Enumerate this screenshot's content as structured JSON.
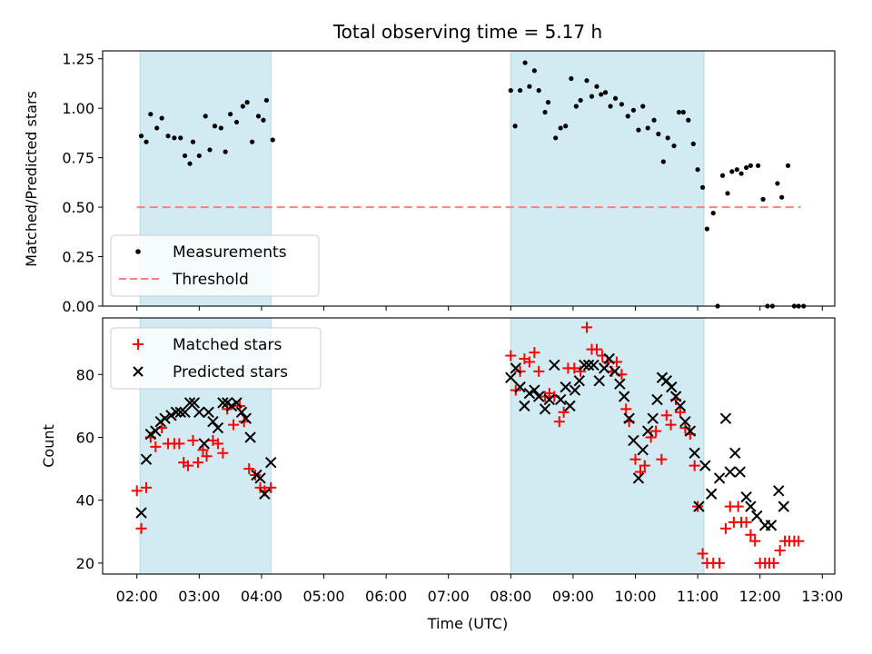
{
  "title": "Total observing time = 5.17 h",
  "colors": {
    "shade": "#add8e6",
    "matched": "#ff0000",
    "predicted": "#000000",
    "threshold": "#ff7f7f",
    "measurements": "#000000"
  },
  "chart_data": [
    {
      "type": "scatter",
      "name": "ratio-panel",
      "title": "Total observing time = 5.17 h",
      "ylabel": "Matched/Predicted stars",
      "xlim": [
        1.45,
        13.2
      ],
      "ylim": [
        0,
        1.29
      ],
      "yticks": [
        0.0,
        0.25,
        0.5,
        0.75,
        1.0,
        1.25
      ],
      "ytick_labels": [
        "0.00",
        "0.25",
        "0.50",
        "0.75",
        "1.00",
        "1.25"
      ],
      "shaded_intervals": [
        [
          2.05,
          4.15
        ],
        [
          8.0,
          11.1
        ]
      ],
      "legend": {
        "placement": "lower-left",
        "entries": [
          "Measurements",
          "Threshold"
        ]
      },
      "series": [
        {
          "name": "Measurements",
          "marker": "dot",
          "points": [
            [
              2.07,
              0.86
            ],
            [
              2.15,
              0.83
            ],
            [
              2.22,
              0.97
            ],
            [
              2.32,
              0.9
            ],
            [
              2.4,
              0.95
            ],
            [
              2.5,
              0.86
            ],
            [
              2.6,
              0.85
            ],
            [
              2.7,
              0.85
            ],
            [
              2.77,
              0.76
            ],
            [
              2.85,
              0.72
            ],
            [
              2.9,
              0.83
            ],
            [
              3.0,
              0.76
            ],
            [
              3.1,
              0.96
            ],
            [
              3.17,
              0.79
            ],
            [
              3.25,
              0.91
            ],
            [
              3.35,
              0.9
            ],
            [
              3.42,
              0.78
            ],
            [
              3.5,
              0.97
            ],
            [
              3.6,
              0.93
            ],
            [
              3.7,
              1.01
            ],
            [
              3.77,
              1.03
            ],
            [
              3.85,
              0.83
            ],
            [
              3.95,
              0.96
            ],
            [
              4.03,
              0.94
            ],
            [
              4.08,
              1.04
            ],
            [
              4.18,
              0.84
            ],
            [
              8.0,
              1.09
            ],
            [
              8.07,
              0.91
            ],
            [
              8.15,
              1.09
            ],
            [
              8.23,
              1.23
            ],
            [
              8.3,
              1.11
            ],
            [
              8.38,
              1.19
            ],
            [
              8.45,
              1.09
            ],
            [
              8.55,
              0.98
            ],
            [
              8.6,
              1.03
            ],
            [
              8.72,
              0.85
            ],
            [
              8.8,
              0.9
            ],
            [
              8.88,
              0.91
            ],
            [
              8.97,
              1.15
            ],
            [
              9.05,
              1.01
            ],
            [
              9.12,
              1.04
            ],
            [
              9.22,
              1.14
            ],
            [
              9.3,
              1.06
            ],
            [
              9.38,
              1.11
            ],
            [
              9.45,
              1.07
            ],
            [
              9.52,
              1.08
            ],
            [
              9.6,
              1.01
            ],
            [
              9.68,
              1.05
            ],
            [
              9.78,
              1.02
            ],
            [
              9.88,
              0.96
            ],
            [
              9.97,
              0.99
            ],
            [
              10.05,
              0.89
            ],
            [
              10.12,
              1.01
            ],
            [
              10.2,
              0.9
            ],
            [
              10.3,
              0.94
            ],
            [
              10.37,
              0.87
            ],
            [
              10.45,
              0.73
            ],
            [
              10.52,
              0.85
            ],
            [
              10.62,
              0.81
            ],
            [
              10.7,
              0.98
            ],
            [
              10.77,
              0.98
            ],
            [
              10.85,
              0.94
            ],
            [
              10.93,
              0.82
            ],
            [
              11.0,
              0.69
            ],
            [
              11.08,
              0.6
            ],
            [
              11.15,
              0.39
            ],
            [
              11.25,
              0.47
            ],
            [
              11.32,
              0.0
            ],
            [
              11.4,
              0.66
            ],
            [
              11.48,
              0.57
            ],
            [
              11.55,
              0.68
            ],
            [
              11.63,
              0.69
            ],
            [
              11.7,
              0.67
            ],
            [
              11.78,
              0.7
            ],
            [
              11.85,
              0.71
            ],
            [
              11.97,
              0.71
            ],
            [
              12.05,
              0.54
            ],
            [
              12.12,
              0.0
            ],
            [
              12.2,
              0.0
            ],
            [
              12.28,
              0.62
            ],
            [
              12.35,
              0.55
            ],
            [
              12.45,
              0.71
            ],
            [
              12.55,
              0.0
            ],
            [
              12.62,
              0.0
            ],
            [
              12.7,
              0.0
            ]
          ]
        },
        {
          "name": "Threshold",
          "style": "dashed",
          "x": [
            2.0,
            12.65
          ],
          "y": [
            0.5,
            0.5
          ]
        }
      ]
    },
    {
      "type": "scatter",
      "name": "count-panel",
      "xlabel": "Time (UTC)",
      "ylabel": "Count",
      "xlim": [
        1.45,
        13.2
      ],
      "ylim": [
        16.5,
        98
      ],
      "yticks": [
        20,
        40,
        60,
        80
      ],
      "ytick_labels": [
        "20",
        "40",
        "60",
        "80"
      ],
      "xticks": [
        2,
        3,
        4,
        5,
        6,
        7,
        8,
        9,
        10,
        11,
        12,
        13
      ],
      "xtick_labels": [
        "02:00",
        "03:00",
        "04:00",
        "05:00",
        "06:00",
        "07:00",
        "08:00",
        "09:00",
        "10:00",
        "11:00",
        "12:00",
        "13:00"
      ],
      "shaded_intervals": [
        [
          2.05,
          4.15
        ],
        [
          8.0,
          11.1
        ]
      ],
      "legend": {
        "placement": "upper-left",
        "entries": [
          "Matched stars",
          "Predicted stars"
        ]
      },
      "series": [
        {
          "name": "Matched stars",
          "marker": "plus",
          "points": [
            [
              2.0,
              43
            ],
            [
              2.07,
              31
            ],
            [
              2.15,
              44
            ],
            [
              2.22,
              60
            ],
            [
              2.3,
              57
            ],
            [
              2.4,
              63
            ],
            [
              2.5,
              58
            ],
            [
              2.6,
              58
            ],
            [
              2.68,
              58
            ],
            [
              2.75,
              52
            ],
            [
              2.82,
              51
            ],
            [
              2.9,
              59
            ],
            [
              2.98,
              52
            ],
            [
              3.06,
              56
            ],
            [
              3.12,
              54
            ],
            [
              3.22,
              59
            ],
            [
              3.3,
              58
            ],
            [
              3.38,
              55
            ],
            [
              3.45,
              69
            ],
            [
              3.55,
              64
            ],
            [
              3.65,
              70
            ],
            [
              3.72,
              65
            ],
            [
              3.8,
              50
            ],
            [
              3.9,
              48
            ],
            [
              3.98,
              44
            ],
            [
              4.05,
              43
            ],
            [
              4.15,
              44
            ],
            [
              8.0,
              86
            ],
            [
              8.08,
              75
            ],
            [
              8.15,
              81
            ],
            [
              8.22,
              85
            ],
            [
              8.3,
              84
            ],
            [
              8.38,
              87
            ],
            [
              8.45,
              81
            ],
            [
              8.55,
              73
            ],
            [
              8.62,
              74
            ],
            [
              8.7,
              73
            ],
            [
              8.78,
              65
            ],
            [
              8.85,
              68
            ],
            [
              8.92,
              82
            ],
            [
              9.02,
              82
            ],
            [
              9.12,
              81
            ],
            [
              9.22,
              95
            ],
            [
              9.3,
              88
            ],
            [
              9.38,
              88
            ],
            [
              9.47,
              86
            ],
            [
              9.55,
              84
            ],
            [
              9.62,
              81
            ],
            [
              9.7,
              84
            ],
            [
              9.78,
              80
            ],
            [
              9.85,
              69
            ],
            [
              9.9,
              65
            ],
            [
              10.0,
              53
            ],
            [
              10.08,
              49
            ],
            [
              10.15,
              51
            ],
            [
              10.25,
              60
            ],
            [
              10.33,
              62
            ],
            [
              10.42,
              53
            ],
            [
              10.5,
              67
            ],
            [
              10.57,
              64
            ],
            [
              10.65,
              72
            ],
            [
              10.72,
              68
            ],
            [
              10.8,
              63
            ],
            [
              10.88,
              61
            ],
            [
              10.95,
              51
            ],
            [
              11.0,
              38
            ],
            [
              11.08,
              23
            ],
            [
              11.15,
              20
            ],
            [
              11.25,
              20
            ],
            [
              11.35,
              20
            ],
            [
              11.45,
              31
            ],
            [
              11.52,
              38
            ],
            [
              11.58,
              33
            ],
            [
              11.65,
              38
            ],
            [
              11.7,
              33
            ],
            [
              11.78,
              33
            ],
            [
              11.85,
              29
            ],
            [
              11.92,
              27
            ],
            [
              12.0,
              20
            ],
            [
              12.08,
              20
            ],
            [
              12.15,
              20
            ],
            [
              12.22,
              20
            ],
            [
              12.32,
              24
            ],
            [
              12.4,
              27
            ],
            [
              12.47,
              27
            ],
            [
              12.55,
              27
            ],
            [
              12.62,
              27
            ]
          ]
        },
        {
          "name": "Predicted stars",
          "marker": "x",
          "points": [
            [
              2.07,
              36
            ],
            [
              2.15,
              53
            ],
            [
              2.22,
              61
            ],
            [
              2.3,
              62
            ],
            [
              2.38,
              65
            ],
            [
              2.45,
              66
            ],
            [
              2.55,
              67
            ],
            [
              2.63,
              68
            ],
            [
              2.7,
              68
            ],
            [
              2.77,
              68
            ],
            [
              2.85,
              71
            ],
            [
              2.92,
              71
            ],
            [
              3.0,
              68
            ],
            [
              3.08,
              58
            ],
            [
              3.15,
              68
            ],
            [
              3.22,
              65
            ],
            [
              3.3,
              63
            ],
            [
              3.38,
              71
            ],
            [
              3.45,
              71
            ],
            [
              3.52,
              70
            ],
            [
              3.6,
              71
            ],
            [
              3.68,
              68
            ],
            [
              3.75,
              66
            ],
            [
              3.82,
              60
            ],
            [
              3.92,
              48
            ],
            [
              3.98,
              47
            ],
            [
              4.05,
              42
            ],
            [
              4.15,
              52
            ],
            [
              8.0,
              79
            ],
            [
              8.08,
              82
            ],
            [
              8.15,
              76
            ],
            [
              8.22,
              70
            ],
            [
              8.3,
              74
            ],
            [
              8.38,
              75
            ],
            [
              8.45,
              73
            ],
            [
              8.55,
              69
            ],
            [
              8.62,
              72
            ],
            [
              8.7,
              83
            ],
            [
              8.8,
              72
            ],
            [
              8.88,
              76
            ],
            [
              8.95,
              70
            ],
            [
              9.03,
              75
            ],
            [
              9.1,
              78
            ],
            [
              9.18,
              83
            ],
            [
              9.25,
              83
            ],
            [
              9.33,
              83
            ],
            [
              9.42,
              78
            ],
            [
              9.5,
              82
            ],
            [
              9.58,
              85
            ],
            [
              9.67,
              81
            ],
            [
              9.75,
              77
            ],
            [
              9.82,
              73
            ],
            [
              9.9,
              66
            ],
            [
              9.97,
              59
            ],
            [
              10.05,
              47
            ],
            [
              10.12,
              56
            ],
            [
              10.2,
              62
            ],
            [
              10.28,
              66
            ],
            [
              10.35,
              72
            ],
            [
              10.43,
              79
            ],
            [
              10.5,
              78
            ],
            [
              10.58,
              76
            ],
            [
              10.65,
              73
            ],
            [
              10.72,
              70
            ],
            [
              10.8,
              65
            ],
            [
              10.88,
              62
            ],
            [
              10.95,
              55
            ],
            [
              11.02,
              38
            ],
            [
              11.12,
              51
            ],
            [
              11.22,
              42
            ],
            [
              11.35,
              47
            ],
            [
              11.45,
              66
            ],
            [
              11.52,
              49
            ],
            [
              11.6,
              55
            ],
            [
              11.68,
              49
            ],
            [
              11.78,
              41
            ],
            [
              11.85,
              38
            ],
            [
              11.95,
              35
            ],
            [
              12.08,
              32
            ],
            [
              12.18,
              32
            ],
            [
              12.3,
              43
            ],
            [
              12.38,
              38
            ]
          ]
        }
      ]
    }
  ]
}
